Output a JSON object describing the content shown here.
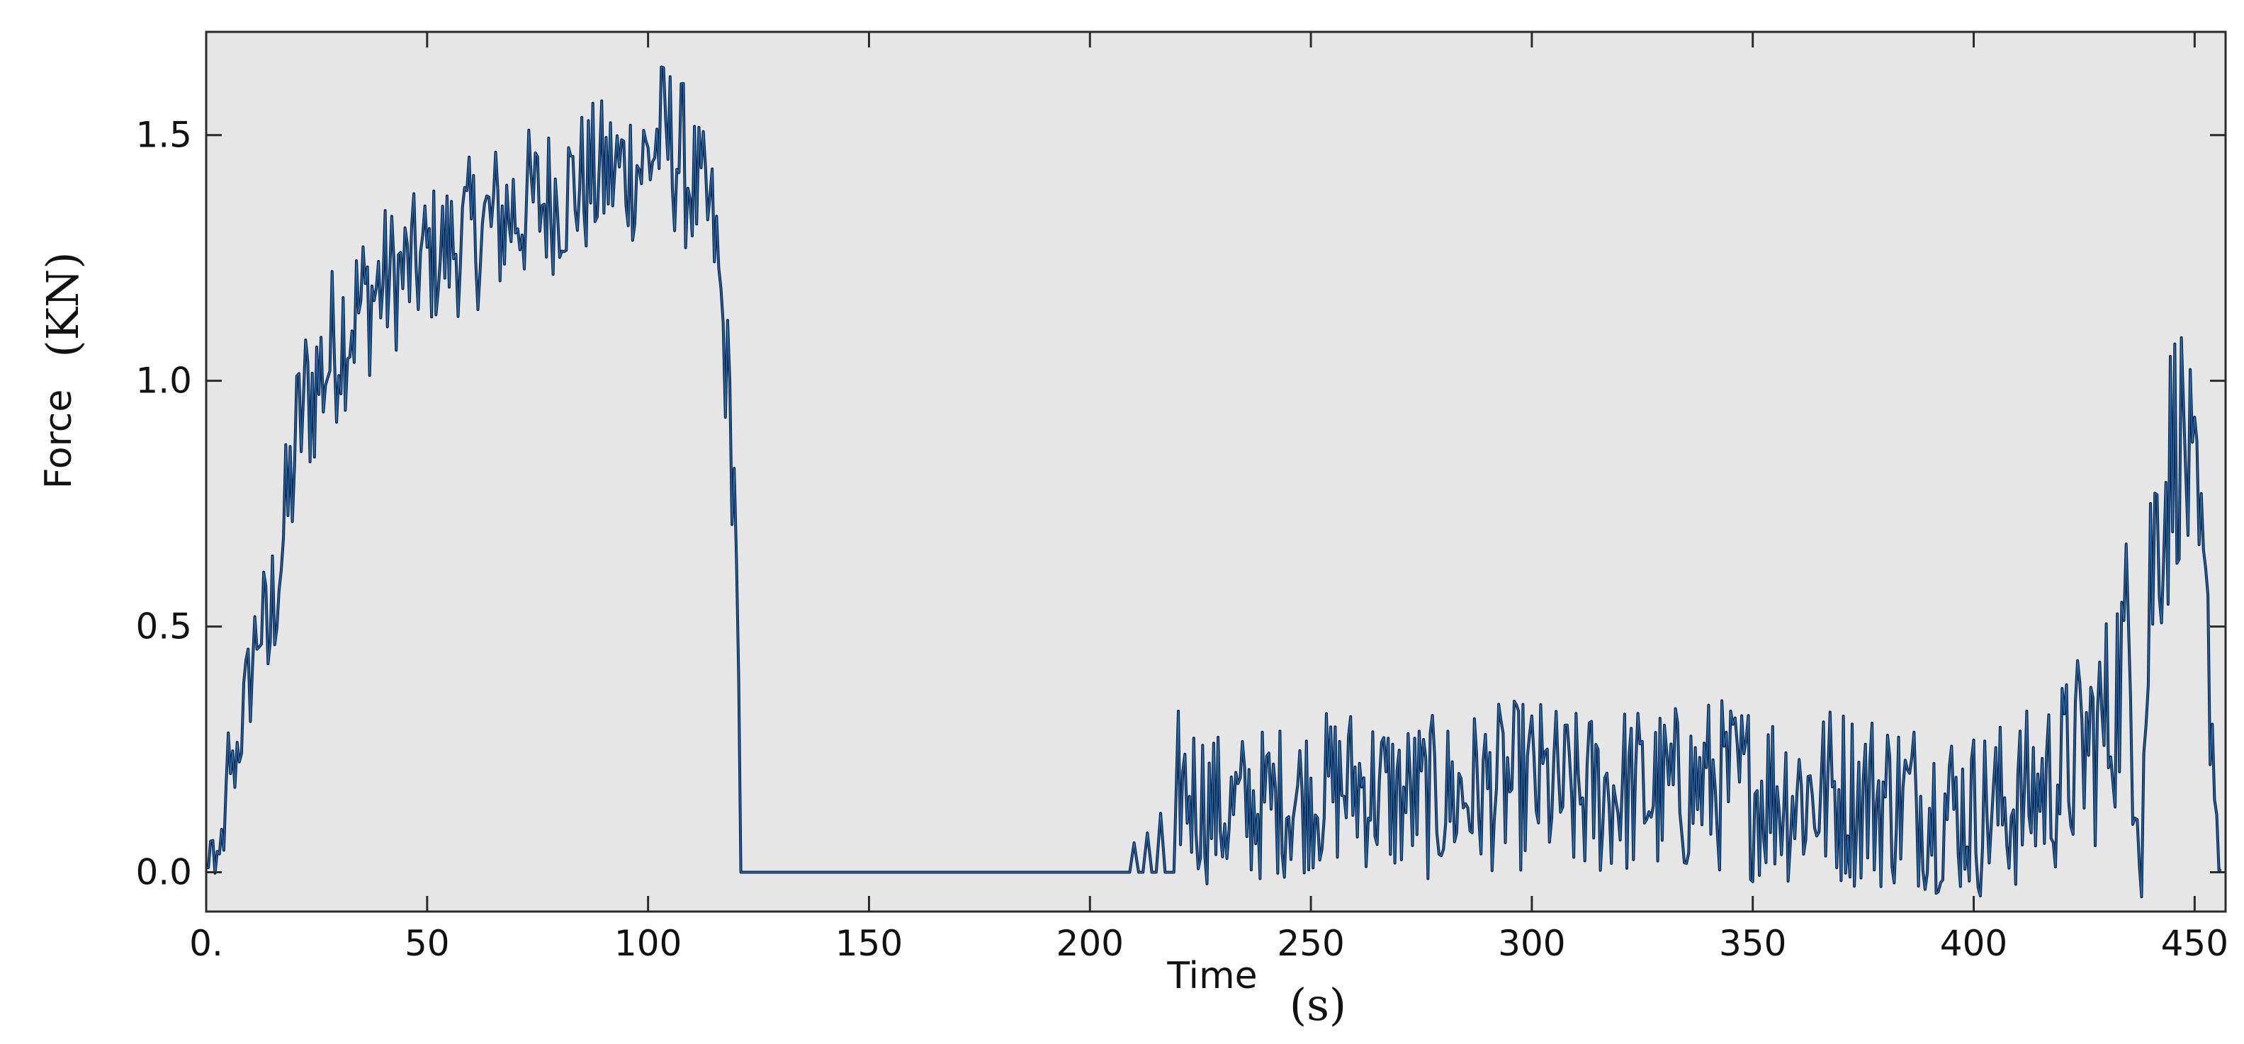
{
  "chart_data": {
    "type": "line",
    "title": "",
    "xlabel": "Time",
    "xlabel_unit": "(s)",
    "ylabel": "Force",
    "ylabel_unit": "(KN)",
    "xlim": [
      0,
      457
    ],
    "ylim": [
      -0.08,
      1.71
    ],
    "x_ticks": [
      0,
      50,
      100,
      150,
      200,
      250,
      300,
      350,
      400,
      450
    ],
    "x_tick_labels": [
      "0.",
      "50",
      "100",
      "150",
      "200",
      "250",
      "300",
      "350",
      "400",
      "450"
    ],
    "y_ticks": [
      0.0,
      0.5,
      1.0,
      1.5
    ],
    "y_tick_labels": [
      "0.0",
      "0.5",
      "1.0",
      "1.5"
    ],
    "grid": false,
    "legend": "none",
    "background_color": "#e6e6e6",
    "series": [
      {
        "color": "#0b3a6e",
        "x": [
          0,
          1,
          2,
          3,
          4,
          5,
          6,
          8,
          10,
          12,
          14,
          16,
          18,
          20,
          22,
          25,
          28,
          30,
          35,
          40,
          45,
          50,
          55,
          60,
          65,
          70,
          75,
          80,
          85,
          90,
          95,
          100,
          103,
          105,
          107,
          110,
          113,
          115,
          116,
          117,
          118,
          119,
          120,
          121,
          125,
          150,
          175,
          200,
          209,
          210,
          211,
          212,
          213,
          214,
          215,
          216,
          217,
          218,
          219,
          220,
          225,
          230,
          240,
          250,
          260,
          270,
          280,
          290,
          300,
          310,
          320,
          330,
          340,
          350,
          360,
          370,
          380,
          390,
          400,
          410,
          420,
          425,
          430,
          433,
          435,
          437,
          438,
          440,
          442,
          444,
          446,
          448,
          450,
          452,
          453,
          454,
          455,
          456
        ],
        "y": [
          0.0,
          0.05,
          -0.02,
          0.07,
          0.02,
          0.25,
          0.2,
          0.3,
          0.4,
          0.52,
          0.45,
          0.62,
          0.7,
          0.85,
          0.95,
          1.0,
          1.05,
          1.1,
          1.15,
          1.2,
          1.22,
          1.25,
          1.27,
          1.3,
          1.32,
          1.35,
          1.36,
          1.38,
          1.4,
          1.42,
          1.43,
          1.45,
          1.5,
          1.48,
          1.46,
          1.4,
          1.35,
          1.3,
          1.2,
          1.1,
          1.0,
          0.85,
          0.7,
          0.0,
          0.0,
          0.0,
          0.0,
          0.0,
          0.0,
          0.06,
          0.0,
          0.0,
          0.08,
          0.0,
          0.0,
          0.12,
          0.0,
          0.0,
          0.0,
          0.18,
          0.15,
          0.12,
          0.14,
          0.16,
          0.18,
          0.15,
          0.15,
          0.17,
          0.18,
          0.15,
          0.17,
          0.16,
          0.18,
          0.17,
          0.16,
          0.16,
          0.15,
          0.14,
          0.12,
          0.14,
          0.2,
          0.25,
          0.3,
          0.4,
          0.45,
          0.3,
          0.1,
          0.6,
          0.75,
          0.8,
          0.9,
          0.85,
          0.7,
          0.55,
          0.45,
          0.3,
          0.1,
          0.0
        ],
        "noise_amplitude": [
          0.03,
          0.05,
          0.05,
          0.05,
          0.06,
          0.07,
          0.08,
          0.1,
          0.12,
          0.14,
          0.16,
          0.18,
          0.18,
          0.18,
          0.18,
          0.18,
          0.18,
          0.18,
          0.17,
          0.16,
          0.15,
          0.15,
          0.15,
          0.16,
          0.17,
          0.17,
          0.16,
          0.16,
          0.16,
          0.16,
          0.16,
          0.16,
          0.16,
          0.18,
          0.18,
          0.16,
          0.15,
          0.15,
          0.15,
          0.15,
          0.15,
          0.15,
          0.15,
          0.0,
          0.0,
          0.0,
          0.0,
          0.0,
          0.0,
          0.0,
          0.0,
          0.0,
          0.0,
          0.0,
          0.0,
          0.0,
          0.0,
          0.0,
          0.0,
          0.16,
          0.17,
          0.16,
          0.16,
          0.16,
          0.17,
          0.17,
          0.17,
          0.17,
          0.18,
          0.18,
          0.18,
          0.18,
          0.18,
          0.19,
          0.19,
          0.19,
          0.19,
          0.18,
          0.18,
          0.18,
          0.2,
          0.22,
          0.24,
          0.26,
          0.28,
          0.3,
          0.28,
          0.3,
          0.3,
          0.3,
          0.28,
          0.26,
          0.24,
          0.22,
          0.2,
          0.15,
          0.08,
          0.03
        ],
        "y_floor": -0.05
      }
    ]
  }
}
